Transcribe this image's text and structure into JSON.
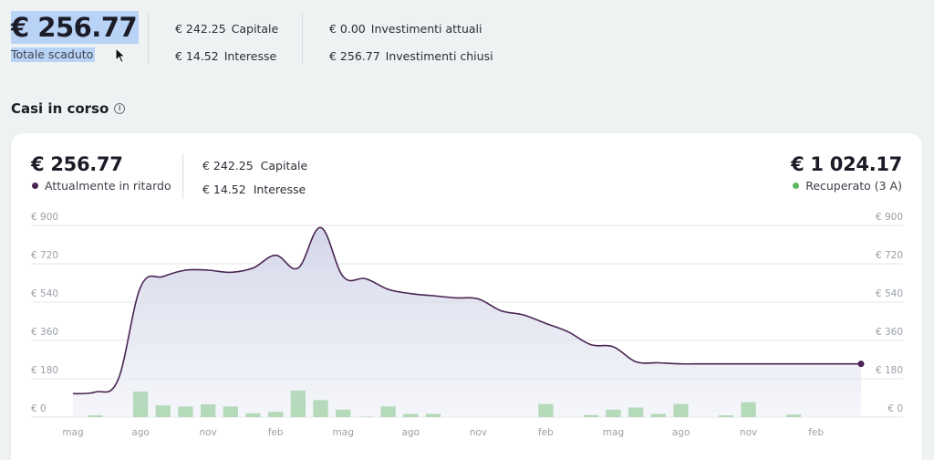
{
  "summary": {
    "total_overdue": "€ 256.77",
    "total_overdue_label": "Totale scaduto",
    "capital": {
      "amount": "€ 242.25",
      "label": "Capitale"
    },
    "interest": {
      "amount": "€ 14.52",
      "label": "Interesse"
    },
    "current_investments": {
      "amount": "€ 0.00",
      "label": "Investimenti attuali"
    },
    "closed_investments": {
      "amount": "€ 256.77",
      "label": "Investimenti chiusi"
    }
  },
  "section": {
    "title": "Casi in corso",
    "info_icon": "info-icon"
  },
  "card": {
    "current_late": {
      "amount": "€ 256.77",
      "label": "Attualmente in ritardo",
      "color": "#4a2453"
    },
    "capital": {
      "amount": "€ 242.25",
      "label": "Capitale"
    },
    "interest": {
      "amount": "€ 14.52",
      "label": "Interesse"
    },
    "recovered": {
      "amount": "€ 1 024.17",
      "label": "Recuperato (3 A)",
      "color": "#5cb85c"
    }
  },
  "chart_data": {
    "type": "area",
    "y_ticks": [
      "€ 900",
      "€ 720",
      "€ 540",
      "€ 360",
      "€ 180",
      "€ 0"
    ],
    "y_tick_values": [
      900,
      720,
      540,
      360,
      180,
      0
    ],
    "ylim": [
      0,
      900
    ],
    "x_tick_labels": [
      "mag",
      "ago",
      "nov",
      "feb",
      "mag",
      "ago",
      "nov",
      "feb",
      "mag",
      "ago",
      "nov",
      "feb"
    ],
    "x_tick_index": [
      0,
      3,
      6,
      9,
      12,
      15,
      18,
      21,
      24,
      27,
      30,
      33
    ],
    "line_color": "#4a2453",
    "area_color": "#d9dceb",
    "bar_color": "#5cb85c",
    "series": [
      {
        "values": [
          110,
          118,
          175,
          610,
          660,
          690,
          690,
          680,
          700,
          760,
          700,
          890,
          660,
          650,
          600,
          580,
          570,
          560,
          555,
          500,
          480,
          440,
          400,
          340,
          330,
          260,
          255,
          250,
          250,
          250,
          250,
          250,
          250,
          250,
          250,
          250
        ]
      },
      {
        "values": [
          0,
          8,
          0,
          120,
          55,
          50,
          60,
          50,
          18,
          25,
          125,
          80,
          35,
          2,
          50,
          15,
          15,
          0,
          0,
          0,
          0,
          62,
          0,
          10,
          35,
          45,
          15,
          62,
          0,
          8,
          70,
          0,
          12,
          0,
          0,
          0
        ]
      }
    ]
  }
}
